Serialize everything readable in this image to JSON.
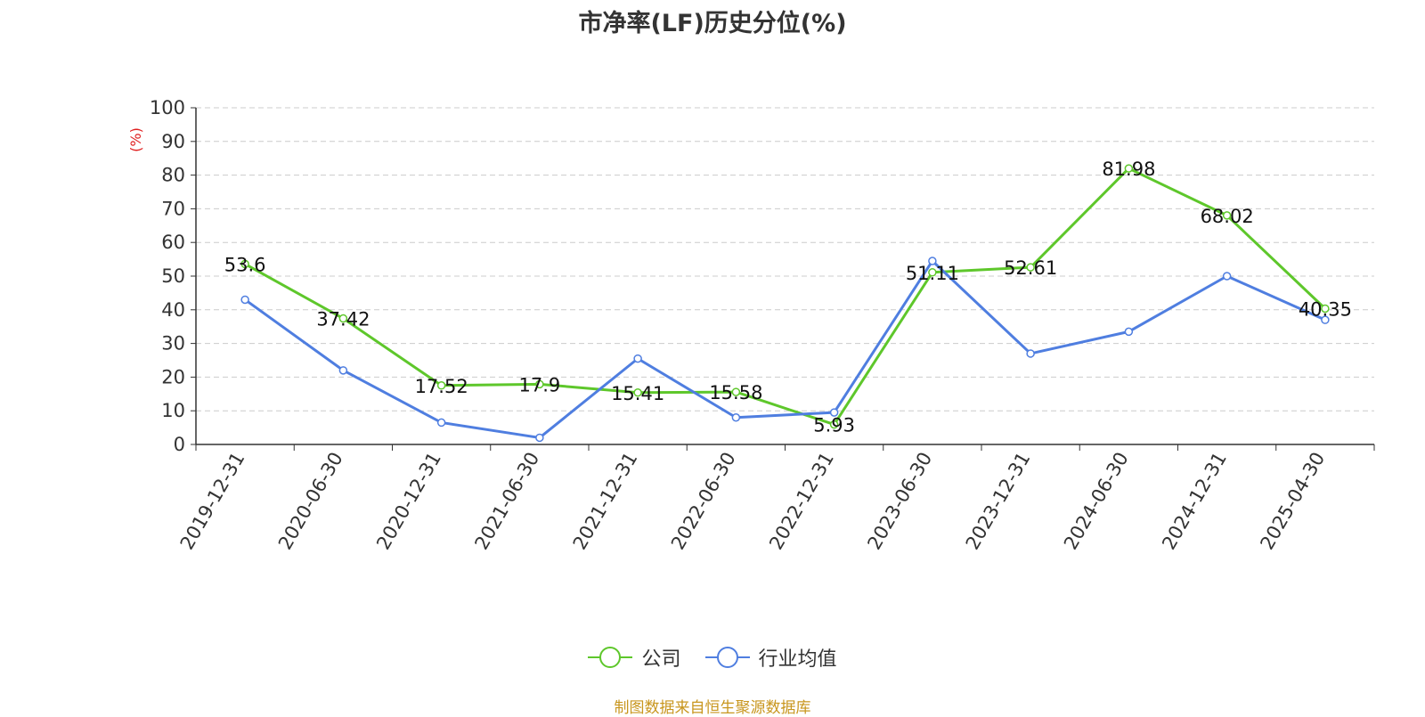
{
  "source_note": "制图数据来自恒生聚源数据库",
  "colors": {
    "company": "#5ec72b",
    "industry": "#4f7ee0",
    "source": "#c8961e",
    "ylabel": "#e02020"
  },
  "chart_data": {
    "type": "line",
    "title": "市净率(LF)历史分位(%)",
    "ylabel": "(%)",
    "ylim": [
      0,
      100
    ],
    "yticks": [
      0,
      10,
      20,
      30,
      40,
      50,
      60,
      70,
      80,
      90,
      100
    ],
    "grid": true,
    "legend_position": "bottom",
    "categories": [
      "2019-12-31",
      "2020-06-30",
      "2020-12-31",
      "2021-06-30",
      "2021-12-31",
      "2022-06-30",
      "2022-12-31",
      "2023-06-30",
      "2023-12-31",
      "2024-06-30",
      "2024-12-31",
      "2025-04-30"
    ],
    "series": [
      {
        "name": "公司",
        "values": [
          53.6,
          37.42,
          17.52,
          17.9,
          15.41,
          15.58,
          5.93,
          51.11,
          52.61,
          81.98,
          68.02,
          40.35
        ],
        "labels": [
          "53.6",
          "37.42",
          "17.52",
          "17.9",
          "15.41",
          "15.58",
          "5.93",
          "51.11",
          "52.61",
          "81.98",
          "68.02",
          "40.35"
        ]
      },
      {
        "name": "行业均值",
        "values": [
          43,
          22,
          6.5,
          2,
          25.5,
          8,
          9.5,
          54.5,
          27,
          33.5,
          50,
          37
        ]
      }
    ]
  }
}
